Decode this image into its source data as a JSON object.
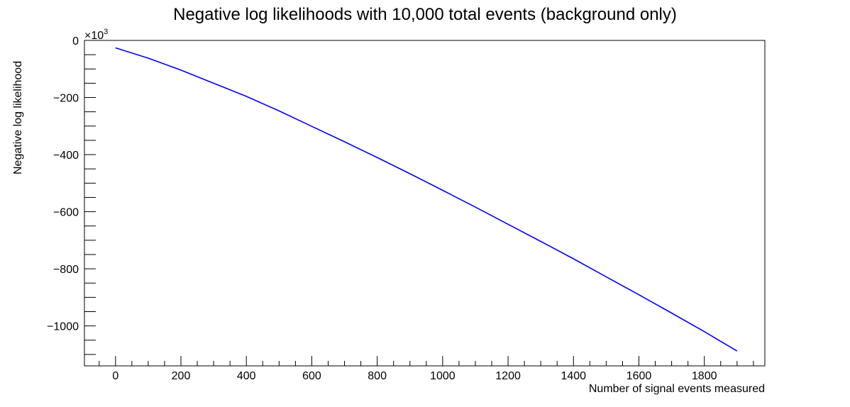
{
  "chart_data": {
    "type": "line",
    "title": "Negative log likelihoods with 10,000 total events (background only)",
    "xlabel": "Number of signal events measured",
    "ylabel": "Negative log likelihood",
    "y_multiplier_base": "×10",
    "y_multiplier_exponent": "3",
    "xlim": [
      -95,
      1985
    ],
    "ylim": [
      -1140,
      0
    ],
    "x_ticks": [
      0,
      200,
      400,
      600,
      800,
      1000,
      1200,
      1400,
      1600,
      1800
    ],
    "x_tick_labels": [
      "0",
      "200",
      "400",
      "600",
      "800",
      "1000",
      "1200",
      "1400",
      "1600",
      "1800"
    ],
    "y_ticks": [
      0,
      -200,
      -400,
      -600,
      -800,
      -1000
    ],
    "y_tick_labels": [
      "0",
      "−200",
      "−400",
      "−600",
      "−800",
      "−1000"
    ],
    "grid": false,
    "legend": "none",
    "series": [
      {
        "color": "#0000ff",
        "x": [
          0,
          100,
          200,
          300,
          400,
          500,
          600,
          700,
          800,
          900,
          1000,
          1100,
          1200,
          1300,
          1400,
          1500,
          1600,
          1700,
          1800,
          1900
        ],
        "y": [
          -26,
          -62,
          -104,
          -150,
          -196,
          -247,
          -301,
          -355,
          -410,
          -467,
          -525,
          -584,
          -644,
          -704,
          -765,
          -828,
          -891,
          -955,
          -1020,
          -1088
        ]
      }
    ]
  }
}
